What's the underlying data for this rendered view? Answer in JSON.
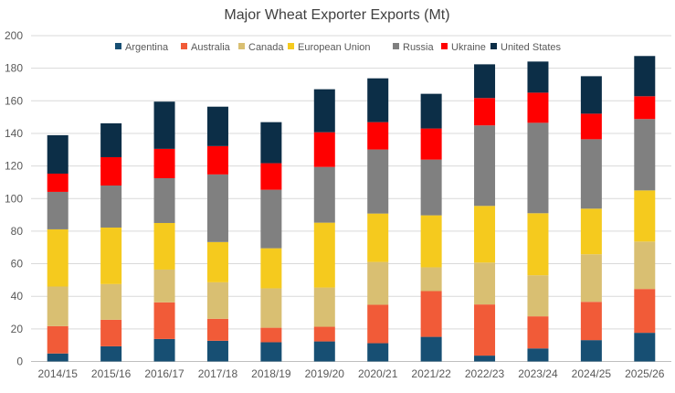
{
  "chart_data": {
    "type": "bar",
    "stacked": true,
    "title": "Major Wheat Exporter Exports (Mt)",
    "xlabel": "",
    "ylabel": "",
    "ylim": [
      0,
      200
    ],
    "yticks": [
      0,
      20,
      40,
      60,
      80,
      100,
      120,
      140,
      160,
      180,
      200
    ],
    "grid": true,
    "legend_position": "top",
    "categories": [
      "2014/15",
      "2015/16",
      "2016/17",
      "2017/18",
      "2018/19",
      "2019/20",
      "2020/21",
      "2021/22",
      "2022/23",
      "2023/24",
      "2024/25",
      "2025/26"
    ],
    "series": [
      {
        "name": "Argentina",
        "color": "#174f73",
        "values": [
          4.9,
          9.3,
          13.8,
          12.7,
          11.8,
          12.3,
          11.2,
          15.1,
          3.6,
          8.0,
          13.1,
          17.6
        ]
      },
      {
        "name": "Australia",
        "color": "#f15b38",
        "values": [
          16.8,
          16.3,
          22.5,
          13.5,
          8.9,
          9.0,
          23.6,
          28.1,
          31.4,
          19.7,
          23.5,
          26.9
        ]
      },
      {
        "name": "Canada",
        "color": "#d9bf72",
        "values": [
          24.3,
          21.9,
          20.1,
          22.4,
          24.2,
          24.1,
          26.3,
          14.6,
          25.7,
          25.2,
          29.2,
          29.1
        ]
      },
      {
        "name": "European Union",
        "color": "#f5ca1e",
        "values": [
          35.1,
          34.7,
          28.6,
          24.7,
          24.6,
          39.8,
          29.7,
          31.9,
          34.8,
          38.1,
          28.0,
          31.4
        ]
      },
      {
        "name": "Russia",
        "color": "#808080",
        "values": [
          23.0,
          25.8,
          27.5,
          41.5,
          35.9,
          34.2,
          39.3,
          34.2,
          49.4,
          55.5,
          42.6,
          43.8
        ]
      },
      {
        "name": "Ukraine",
        "color": "#ff0000",
        "values": [
          11.2,
          17.4,
          18.0,
          17.4,
          16.3,
          21.3,
          16.8,
          19.1,
          16.8,
          18.5,
          15.7,
          14.0
        ]
      },
      {
        "name": "United States",
        "color": "#0c2e47",
        "values": [
          23.6,
          20.8,
          29.0,
          24.2,
          25.2,
          26.4,
          26.9,
          21.3,
          20.7,
          19.1,
          23.0,
          24.7
        ]
      }
    ]
  }
}
